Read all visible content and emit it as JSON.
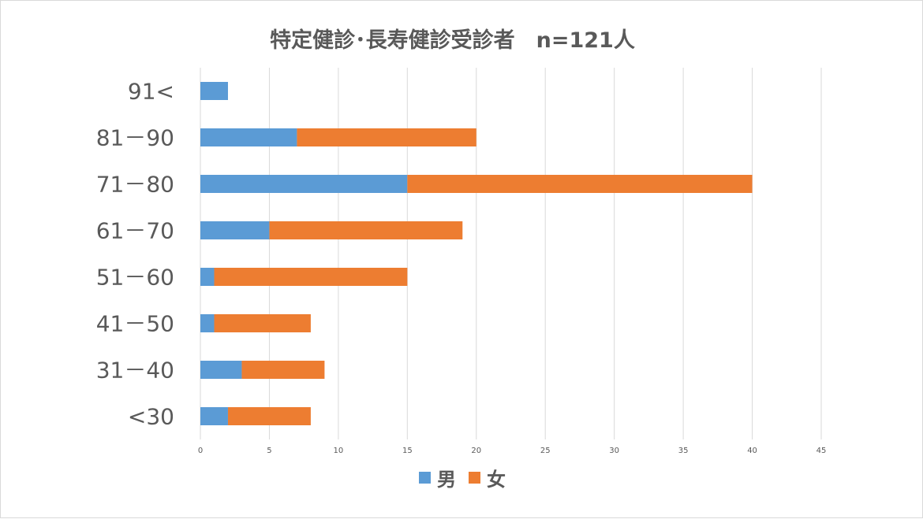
{
  "chart_data": {
    "type": "bar",
    "orientation": "horizontal",
    "stacked": true,
    "title": "特定健診･長寿健診受診者　n=121人",
    "categories": [
      "<30",
      "31－40",
      "41－50",
      "51－60",
      "61－70",
      "71－80",
      "81－90",
      "91<"
    ],
    "series": [
      {
        "name": "男",
        "color": "#5B9BD5",
        "values": [
          2,
          3,
          1,
          1,
          5,
          15,
          7,
          2
        ]
      },
      {
        "name": "女",
        "color": "#ED7D31",
        "values": [
          6,
          6,
          7,
          14,
          14,
          25,
          13,
          0
        ]
      }
    ],
    "x_ticks": [
      "0",
      "5",
      "10",
      "15",
      "20",
      "25",
      "30",
      "35",
      "40",
      "45"
    ],
    "xlim": [
      0,
      45
    ],
    "grid": true,
    "legend_position": "bottom"
  }
}
